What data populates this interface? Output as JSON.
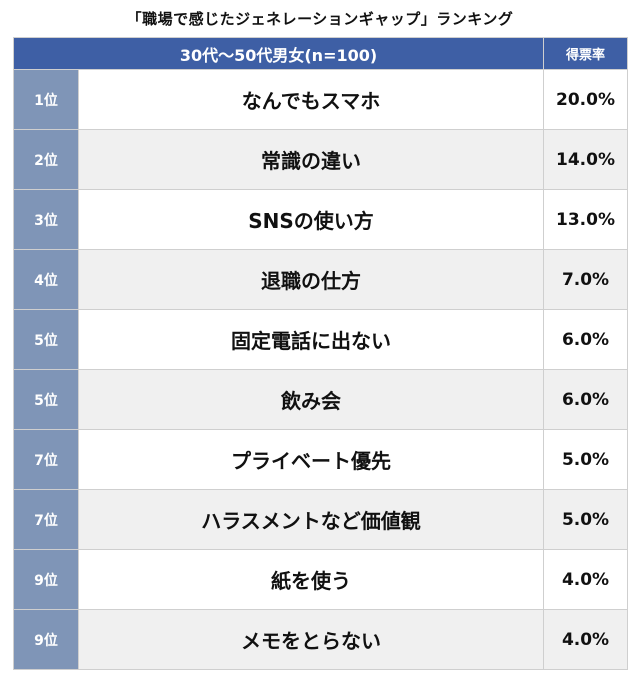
{
  "title": "「職場で感じたジェネレーションギャップ」ランキング",
  "header": {
    "group_label": "30代〜50代男女(n=100)",
    "rate_label": "得票率"
  },
  "chart_data": {
    "type": "table",
    "title": "「職場で感じたジェネレーションギャップ」ランキング",
    "columns": [
      "30代〜50代男女(n=100)",
      "得票率"
    ],
    "rows": [
      {
        "rank": "1位",
        "item": "なんでもスマホ",
        "rate": "20.0%",
        "value": 20.0
      },
      {
        "rank": "2位",
        "item": "常識の違い",
        "rate": "14.0%",
        "value": 14.0
      },
      {
        "rank": "3位",
        "item": "SNSの使い方",
        "rate": "13.0%",
        "value": 13.0
      },
      {
        "rank": "4位",
        "item": "退職の仕方",
        "rate": "7.0%",
        "value": 7.0
      },
      {
        "rank": "5位",
        "item": "固定電話に出ない",
        "rate": "6.0%",
        "value": 6.0
      },
      {
        "rank": "5位",
        "item": "飲み会",
        "rate": "6.0%",
        "value": 6.0
      },
      {
        "rank": "7位",
        "item": "プライベート優先",
        "rate": "5.0%",
        "value": 5.0
      },
      {
        "rank": "7位",
        "item": "ハラスメントなど価値観",
        "rate": "5.0%",
        "value": 5.0
      },
      {
        "rank": "9位",
        "item": "紙を使う",
        "rate": "4.0%",
        "value": 4.0
      },
      {
        "rank": "9位",
        "item": "メモをとらない",
        "rate": "4.0%",
        "value": 4.0
      }
    ]
  },
  "colors": {
    "header_bg": "#3e5fa5",
    "rank_bg": "#7f95b7",
    "stripe_bg": "#f0f0f0"
  }
}
